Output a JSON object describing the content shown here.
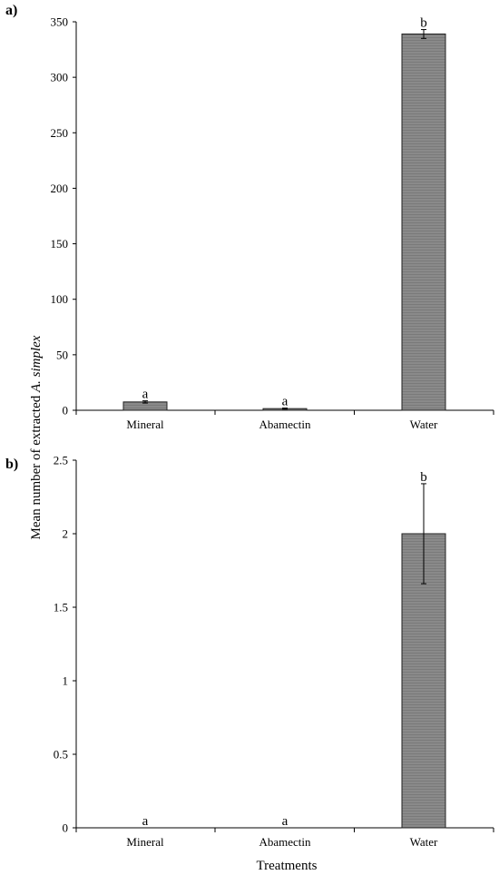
{
  "figure": {
    "ylabel_prefix": "Mean number of extracted ",
    "ylabel_species": "A. simplex",
    "xlabel": "Treatments"
  },
  "chart_data": [
    {
      "type": "bar",
      "panel_label": "a)",
      "categories": [
        "Mineral",
        "Abamectin",
        "Water"
      ],
      "values": [
        7.5,
        1.5,
        339
      ],
      "error": [
        1.0,
        0.5,
        4.0
      ],
      "significance": [
        "a",
        "a",
        "b"
      ],
      "ylim": [
        0,
        350
      ],
      "yticks": [
        0,
        50,
        100,
        150,
        200,
        250,
        300,
        350
      ],
      "ytick_labels": [
        "0",
        "50",
        "100",
        "150",
        "200",
        "250",
        "300",
        "350"
      ],
      "grid": false,
      "bar_color": "#808080"
    },
    {
      "type": "bar",
      "panel_label": "b)",
      "categories": [
        "Mineral",
        "Abamectin",
        "Water"
      ],
      "values": [
        0,
        0,
        2.0
      ],
      "error": [
        0,
        0,
        0.34
      ],
      "significance": [
        "a",
        "a",
        "b"
      ],
      "ylim": [
        0,
        2.5
      ],
      "yticks": [
        0,
        0.5,
        1,
        1.5,
        2,
        2.5
      ],
      "ytick_labels": [
        "0",
        "0.5",
        "1",
        "1.5",
        "2",
        "2.5"
      ],
      "grid": false,
      "bar_color": "#808080"
    }
  ]
}
